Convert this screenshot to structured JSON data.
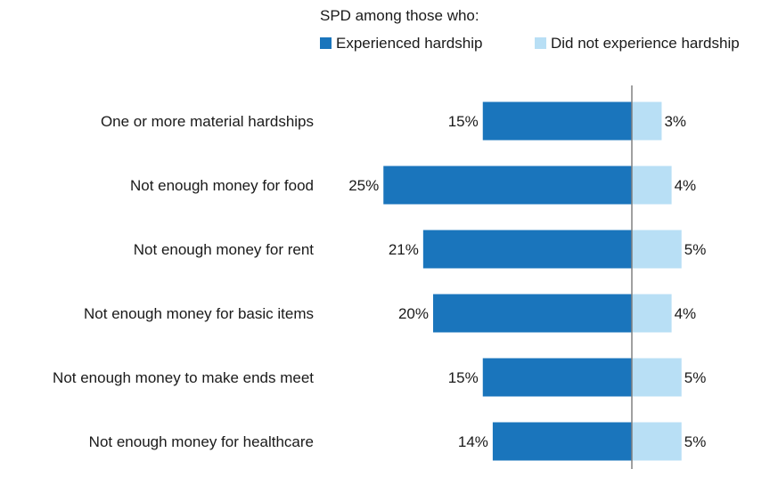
{
  "chart_data": {
    "type": "bar",
    "orientation": "horizontal-diverging",
    "legend_title": "SPD among those who:",
    "legend_placement": "top",
    "categories": [
      "One or more material hardships",
      "Not enough money for food",
      "Not enough money for rent",
      "Not enough money for basic items",
      "Not enough money to make ends meet",
      "Not enough money for healthcare"
    ],
    "series": [
      {
        "name": "Experienced hardship",
        "color": "#1a75bc",
        "values": [
          15,
          25,
          21,
          20,
          15,
          14
        ],
        "labels": [
          "15%",
          "25%",
          "21%",
          "20%",
          "15%",
          "14%"
        ]
      },
      {
        "name": "Did not experience hardship",
        "color": "#b8dff5",
        "values": [
          3,
          4,
          5,
          4,
          5,
          5
        ],
        "labels": [
          "3%",
          "4%",
          "5%",
          "4%",
          "5%",
          "5%"
        ]
      }
    ],
    "unit": "%",
    "grid": false,
    "center_axis_color": "#808080"
  }
}
